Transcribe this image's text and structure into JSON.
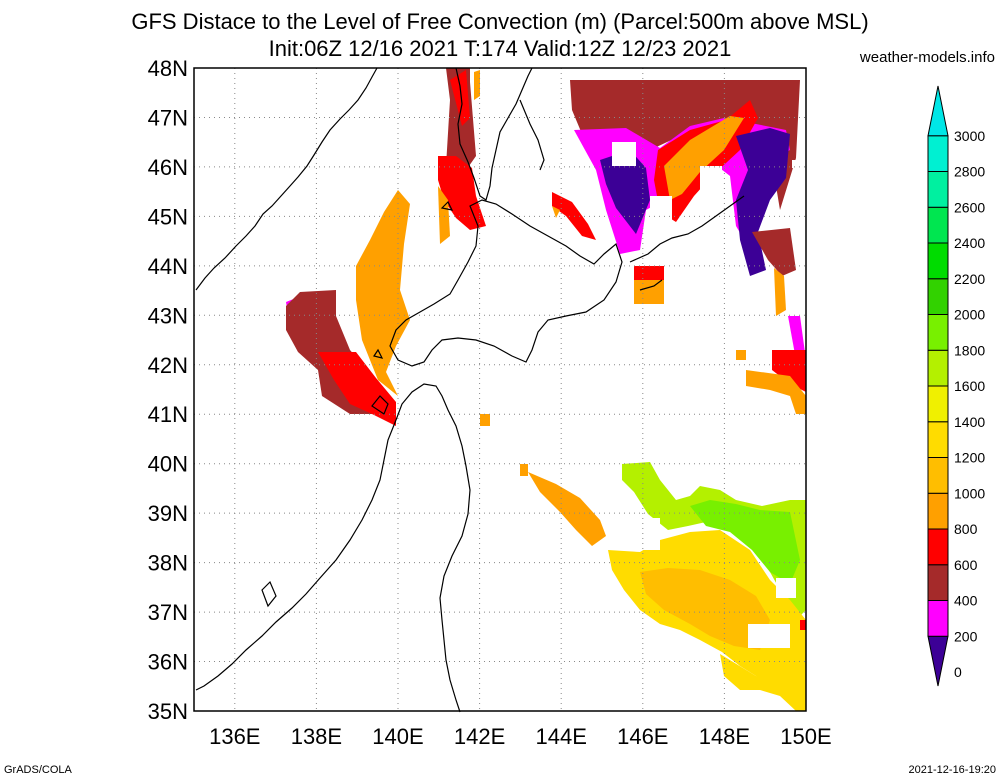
{
  "header": {
    "title_line1": "GFS Distace to the Level of Free Convection (m) (Parcel:500m above MSL)",
    "title_line2": "Init:06Z 12/16 2021 T:174 Valid:12Z 12/23 2021",
    "site": "weather-models.info"
  },
  "footer": {
    "left": "GrADS/COLA",
    "right": "2021-12-16-19:20"
  },
  "map": {
    "lat_labels": [
      "48N",
      "47N",
      "46N",
      "45N",
      "44N",
      "43N",
      "42N",
      "41N",
      "40N",
      "39N",
      "38N",
      "37N",
      "36N",
      "35N"
    ],
    "lon_labels": [
      "136E",
      "138E",
      "140E",
      "142E",
      "144E",
      "146E",
      "148E",
      "150E"
    ],
    "lat_range": [
      35,
      48
    ],
    "lon_range": [
      135,
      150
    ],
    "grid": true
  },
  "colorbar": {
    "levels": [
      "0",
      "200",
      "400",
      "600",
      "800",
      "1000",
      "1200",
      "1400",
      "1600",
      "1800",
      "2000",
      "2200",
      "2400",
      "2600",
      "2800",
      "3000"
    ],
    "colors": [
      "#3c0096",
      "#ff00ff",
      "#a52a2a",
      "#ff0000",
      "#ffa000",
      "#ffbe00",
      "#ffdc00",
      "#f0f000",
      "#b4f000",
      "#78f000",
      "#32d200",
      "#00dc00",
      "#00e650",
      "#00f0a0",
      "#00f0d2",
      "#00e6e6"
    ]
  }
}
